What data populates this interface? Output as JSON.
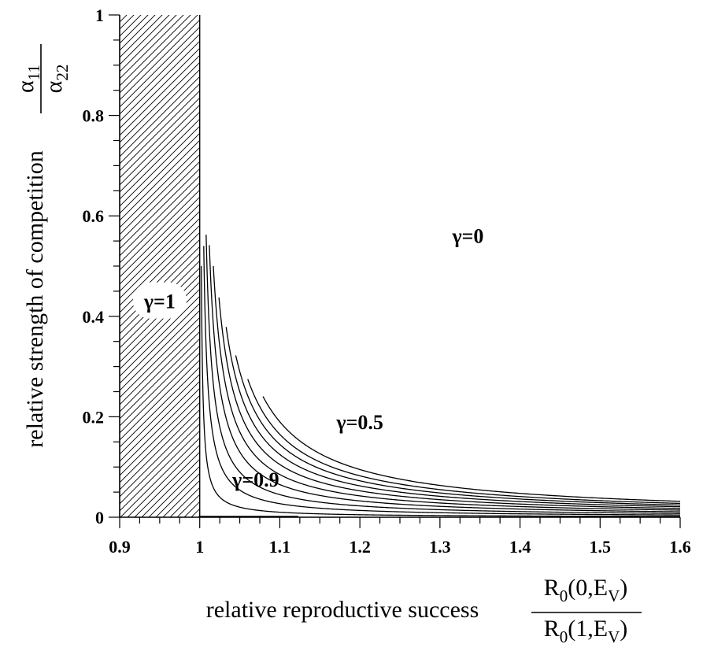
{
  "chart_data": {
    "type": "line",
    "xlabel": "relative  reproductive success",
    "xlabel_fraction": {
      "numerator": {
        "main": "R",
        "sub": "0",
        "rest": "(0,E",
        "sub2": "V",
        "close": ")"
      },
      "denominator": {
        "main": "R",
        "sub": "0",
        "rest": "(1,E",
        "sub2": "V",
        "close": ")"
      }
    },
    "ylabel": "relative strength of competition",
    "ylabel_fraction": {
      "numerator": {
        "main": "α",
        "sub": "11"
      },
      "denominator": {
        "main": "α",
        "sub": "22"
      }
    },
    "xlim": [
      0.9,
      1.6
    ],
    "ylim": [
      0,
      1
    ],
    "xticks": [
      0.9,
      1,
      1.1,
      1.2,
      1.3,
      1.4,
      1.5,
      1.6
    ],
    "xtick_labels": [
      "0.9",
      "1",
      "1.1",
      "1.2",
      "1.3",
      "1.4",
      "1.5",
      "1.6"
    ],
    "yticks": [
      0,
      0.2,
      0.4,
      0.6,
      0.8,
      1
    ],
    "ytick_labels": [
      "0",
      "0.2",
      "0.4",
      "0.6",
      "0.8",
      "1"
    ],
    "hatched_region": {
      "x": [
        0.9,
        1.0
      ],
      "y": [
        0,
        1
      ]
    },
    "vertical_line_x": 1.0,
    "bottom_segment": {
      "x": [
        1.0,
        1.123
      ],
      "y": 0
    },
    "series": [
      {
        "k": 0.001,
        "x_start": 1.002
      },
      {
        "k": 0.0027,
        "x_start": 1.005
      },
      {
        "k": 0.0045,
        "x_start": 1.008
      },
      {
        "k": 0.0065,
        "x_start": 1.012
      },
      {
        "k": 0.0085,
        "x_start": 1.017
      },
      {
        "k": 0.0105,
        "x_start": 1.024
      },
      {
        "k": 0.0125,
        "x_start": 1.033
      },
      {
        "k": 0.0145,
        "x_start": 1.045
      },
      {
        "k": 0.0165,
        "x_start": 1.06
      },
      {
        "k": 0.019,
        "x_start": 1.079
      }
    ],
    "annotations": [
      {
        "text": "γ=0",
        "x": 1.335,
        "y": 0.56
      },
      {
        "text": "γ=1",
        "x": 0.95,
        "y": 0.43
      },
      {
        "text": "γ=0.5",
        "x": 1.2,
        "y": 0.19
      },
      {
        "text": "γ=0.9",
        "x": 1.07,
        "y": 0.075
      }
    ]
  }
}
